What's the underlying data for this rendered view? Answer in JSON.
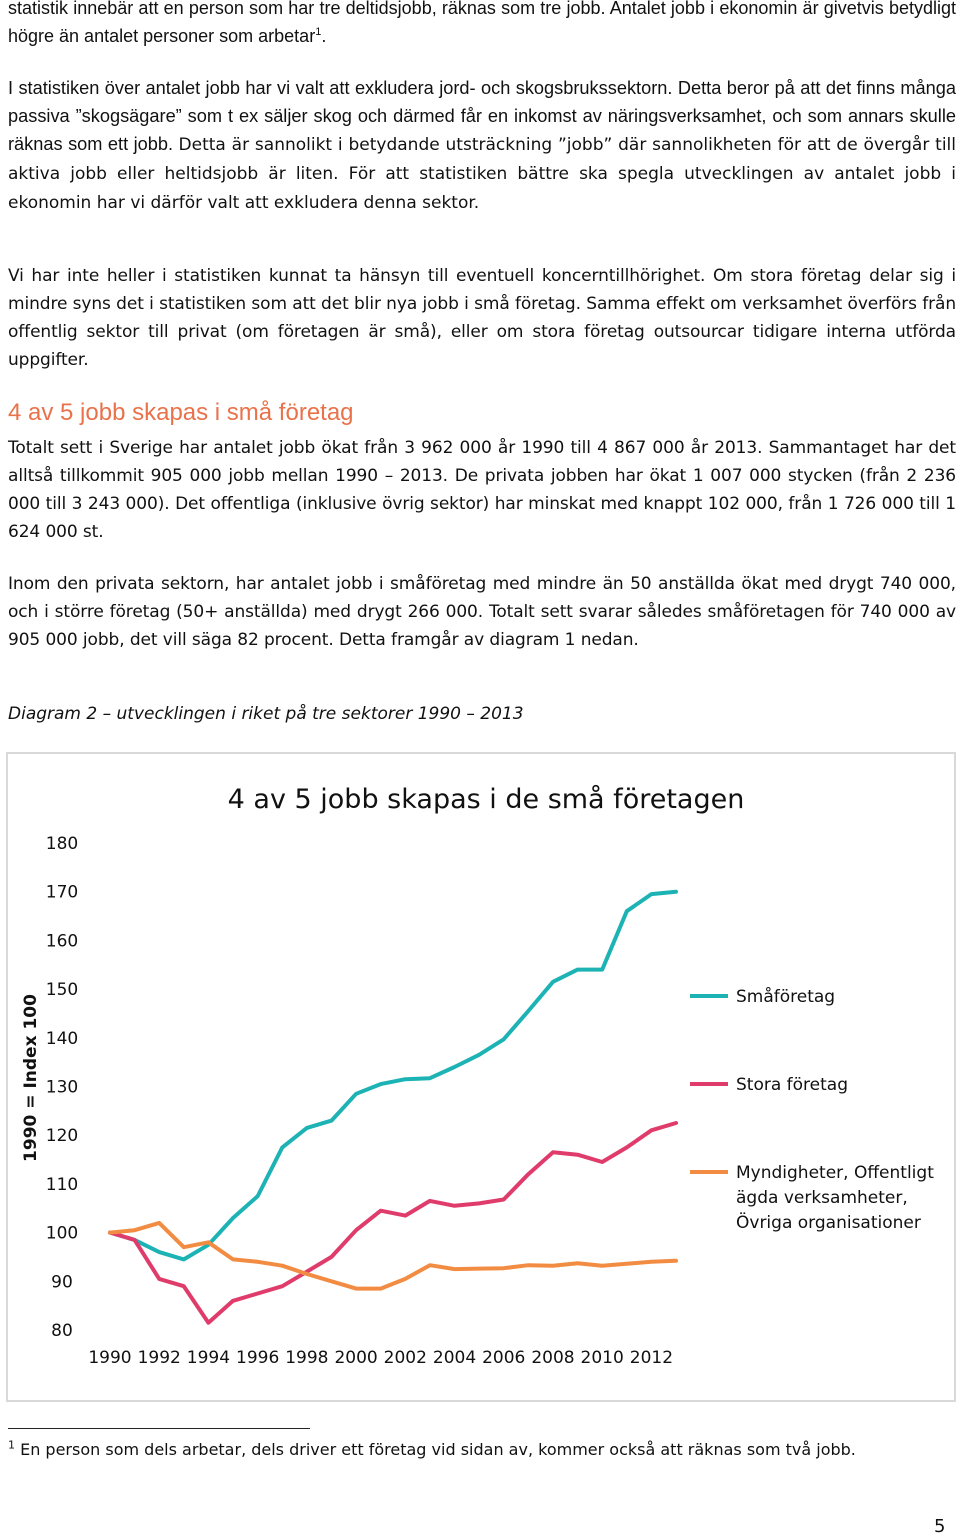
{
  "paragraphs": {
    "p0": "statistik innebär att en person som har tre deltidsjobb, räknas som tre jobb. Antalet jobb i ekonomin är givetvis betydligt högre än antalet personer som arbetar",
    "p0_sup": "1",
    "p0_end": ".",
    "p1": "I statistiken över antalet jobb har vi valt att exkludera jord- och skogsbrukssektorn. Detta beror på att det finns många passiva ”skogsägare” som t ex säljer skog och därmed får en inkomst av näringsverksamhet, och som annars skulle räknas som ett jobb.",
    "p1_cal": "Detta är sannolikt i betydande utsträckning ”jobb” där sannolikheten för att de övergår till aktiva jobb eller heltidsjobb är liten. För att statistiken bättre ska spegla utvecklingen av antalet jobb i ekonomin har vi därför valt att exkludera denna sektor.",
    "p2": "Vi har inte heller i statistiken kunnat ta hänsyn till eventuell koncerntillhörighet. Om stora företag delar sig i mindre syns det i statistiken som att det blir nya jobb i små företag. Samma effekt om verksamhet överförs från offentlig sektor till privat (om företagen är små), eller om stora företag outsourcar tidigare interna utförda uppgifter.",
    "heading": "4 av 5 jobb skapas i små företag",
    "p3": "Totalt sett i Sverige har antalet jobb ökat från 3 962 000 år 1990 till 4 867 000 år 2013. Sammantaget har det alltså tillkommit 905 000 jobb mellan 1990 – 2013. De privata jobben har ökat 1 007 000 stycken (från 2 236 000 till 3 243 000). Det offentliga (inklusive övrig sektor) har minskat med knappt 102 000, från 1 726 000 till 1 624 000 st.",
    "p4": "Inom den privata sektorn, har antalet jobb i småföretag med mindre än 50 anställda ökat med drygt 740 000, och i större företag (50+ anställda) med drygt 266 000. Totalt sett svarar således småföretagen för 740 000 av 905 000 jobb, det vill säga 82 procent. Detta framgår av diagram 1 nedan.",
    "caption": "Diagram 2 – utvecklingen i riket på tre sektorer 1990 – 2013"
  },
  "footnote": {
    "marker": "1",
    "text": "En person som dels arbetar, dels driver ett företag vid sidan av, kommer också att räknas som två jobb."
  },
  "page_number": "5",
  "chart_data": {
    "type": "line",
    "title": "4 av 5 jobb skapas i de små företagen",
    "ylabel": "1990 = Index 100",
    "xlabel": "",
    "ylim": [
      80,
      180
    ],
    "yticks": [
      180,
      170,
      160,
      150,
      140,
      130,
      120,
      110,
      100,
      90,
      80
    ],
    "x": [
      1990,
      1991,
      1992,
      1993,
      1994,
      1995,
      1996,
      1997,
      1998,
      1999,
      2000,
      2001,
      2002,
      2003,
      2004,
      2005,
      2006,
      2007,
      2008,
      2009,
      2010,
      2011,
      2012,
      2013
    ],
    "xtick_labels": [
      "1990",
      "1992",
      "1994",
      "1996",
      "1998",
      "2000",
      "2002",
      "2004",
      "2006",
      "2008",
      "2010",
      "2012"
    ],
    "grid": false,
    "legend_position": "right",
    "series": [
      {
        "name": "Småföretag",
        "color": "#1db3b5",
        "values": [
          100,
          98.5,
          96,
          94.5,
          97.5,
          103,
          107.5,
          117.5,
          121.5,
          123,
          128.5,
          130.5,
          131.5,
          131.7,
          134,
          136.5,
          139.7,
          145.5,
          151.5,
          154,
          154,
          166,
          169.5,
          170
        ]
      },
      {
        "name": "Stora företag",
        "color": "#e03c6b",
        "values": [
          100,
          98.5,
          90.5,
          89,
          81.5,
          86,
          87.5,
          89,
          92,
          95,
          100.5,
          104.5,
          103.5,
          106.5,
          105.5,
          106,
          106.8,
          112,
          116.5,
          116,
          114.5,
          117.5,
          121,
          122.5
        ]
      },
      {
        "name": "Myndigheter, Offentligt ägda verksamheter, Övriga organisationer",
        "color": "#f28c42",
        "values": [
          100,
          100.5,
          102,
          97,
          98,
          94.5,
          94,
          93.2,
          91.5,
          90,
          88.5,
          88.5,
          90.5,
          93.3,
          92.5,
          92.6,
          92.7,
          93.3,
          93.2,
          93.7,
          93.2,
          93.6,
          94,
          94.2
        ]
      }
    ]
  }
}
